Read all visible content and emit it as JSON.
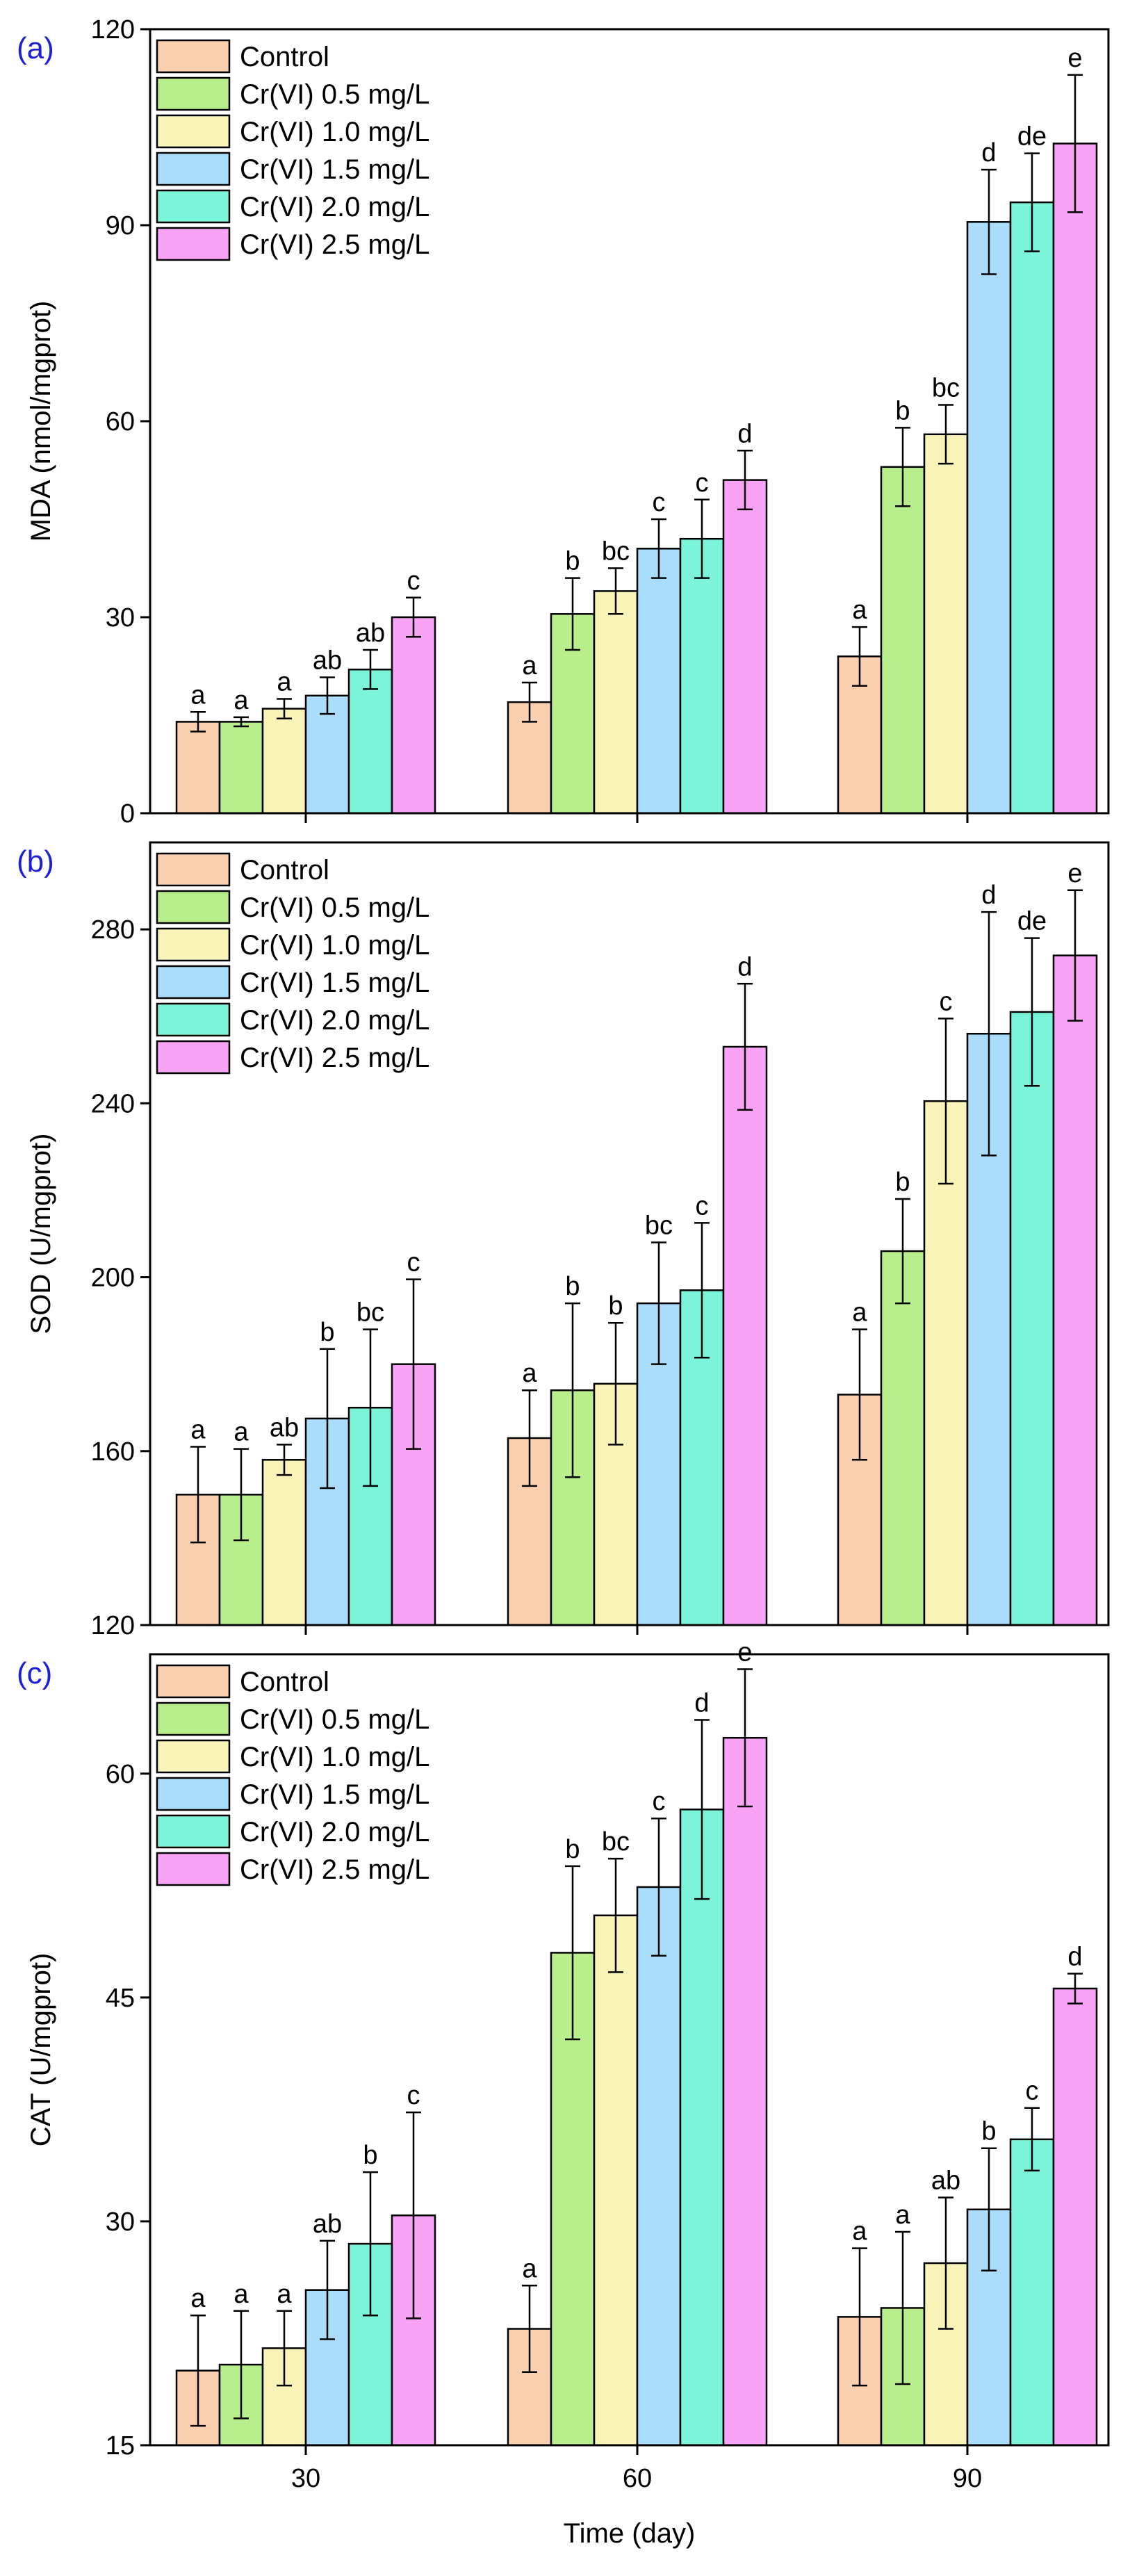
{
  "chart_data": [
    {
      "type": "bar",
      "panel_label": "(a)",
      "ylabel": "MDA (nmol/mgprot)",
      "xlabel": "",
      "ylim": [
        0,
        120
      ],
      "yticks": [
        0,
        30,
        60,
        90,
        120
      ],
      "categories": [
        "30",
        "60",
        "90"
      ],
      "legend_position": "top-left",
      "series": [
        {
          "name": "Control",
          "values": [
            14,
            17,
            24
          ],
          "errors": [
            1.5,
            3,
            4.5
          ],
          "labels": [
            "a",
            "a",
            "a"
          ]
        },
        {
          "name": "Cr(VI) 0.5 mg/L",
          "values": [
            14,
            30.5,
            53
          ],
          "errors": [
            0.7,
            5.5,
            6
          ],
          "labels": [
            "a",
            "b",
            "b"
          ]
        },
        {
          "name": "Cr(VI) 1.0 mg/L",
          "values": [
            16,
            34,
            58
          ],
          "errors": [
            1.5,
            3.5,
            4.5
          ],
          "labels": [
            "a",
            "bc",
            "bc"
          ]
        },
        {
          "name": "Cr(VI) 1.5 mg/L",
          "values": [
            18,
            40.5,
            90.5
          ],
          "errors": [
            2.8,
            4.5,
            8
          ],
          "labels": [
            "ab",
            "c",
            "d"
          ]
        },
        {
          "name": "Cr(VI) 2.0 mg/L",
          "values": [
            22,
            42,
            93.5
          ],
          "errors": [
            3,
            6,
            7.5
          ],
          "labels": [
            "ab",
            "c",
            "de"
          ]
        },
        {
          "name": "Cr(VI) 2.5 mg/L",
          "values": [
            30,
            51,
            102.5
          ],
          "errors": [
            3,
            4.5,
            10.5
          ],
          "labels": [
            "c",
            "d",
            "e"
          ]
        }
      ]
    },
    {
      "type": "bar",
      "panel_label": "(b)",
      "ylabel": "SOD (U/mgprot)",
      "xlabel": "",
      "ylim": [
        120,
        300
      ],
      "yticks": [
        120,
        160,
        200,
        240,
        280
      ],
      "categories": [
        "30",
        "60",
        "90"
      ],
      "legend_position": "top-left",
      "series": [
        {
          "name": "Control",
          "values": [
            150,
            163,
            173
          ],
          "errors": [
            11,
            11,
            15
          ],
          "labels": [
            "a",
            "a",
            "a"
          ]
        },
        {
          "name": "Cr(VI) 0.5 mg/L",
          "values": [
            150,
            174,
            206
          ],
          "errors": [
            10.5,
            20,
            12
          ],
          "labels": [
            "a",
            "b",
            "b"
          ]
        },
        {
          "name": "Cr(VI) 1.0 mg/L",
          "values": [
            158,
            175.5,
            240.5
          ],
          "errors": [
            3.5,
            14,
            19
          ],
          "labels": [
            "ab",
            "b",
            "c"
          ]
        },
        {
          "name": "Cr(VI) 1.5 mg/L",
          "values": [
            167.5,
            194,
            256
          ],
          "errors": [
            16,
            14,
            28
          ],
          "labels": [
            "b",
            "bc",
            "d"
          ]
        },
        {
          "name": "Cr(VI) 2.0 mg/L",
          "values": [
            170,
            197,
            261
          ],
          "errors": [
            18,
            15.5,
            17
          ],
          "labels": [
            "bc",
            "c",
            "de"
          ]
        },
        {
          "name": "Cr(VI) 2.5 mg/L",
          "values": [
            180,
            253,
            274
          ],
          "errors": [
            19.5,
            14.5,
            15
          ],
          "labels": [
            "c",
            "d",
            "e"
          ]
        }
      ]
    },
    {
      "type": "bar",
      "panel_label": "(c)",
      "ylabel": "CAT (U/mgprot)",
      "xlabel": "Time (day)",
      "ylim": [
        15,
        68
      ],
      "yticks": [
        15,
        30,
        45,
        60
      ],
      "categories": [
        "30",
        "60",
        "90"
      ],
      "legend_position": "top-left",
      "series": [
        {
          "name": "Control",
          "values": [
            20,
            22.8,
            23.6
          ],
          "errors": [
            3.7,
            2.9,
            4.6
          ],
          "labels": [
            "a",
            "a",
            "a"
          ]
        },
        {
          "name": "Cr(VI) 0.5 mg/L",
          "values": [
            20.4,
            48,
            24.2
          ],
          "errors": [
            3.6,
            5.8,
            5.1
          ],
          "labels": [
            "a",
            "b",
            "a"
          ]
        },
        {
          "name": "Cr(VI) 1.0 mg/L",
          "values": [
            21.5,
            50.5,
            27.2
          ],
          "errors": [
            2.5,
            3.8,
            4.4
          ],
          "labels": [
            "a",
            "bc",
            "ab"
          ]
        },
        {
          "name": "Cr(VI) 1.5 mg/L",
          "values": [
            25.4,
            52.4,
            30.8
          ],
          "errors": [
            3.3,
            4.6,
            4.1
          ],
          "labels": [
            "ab",
            "c",
            "b"
          ]
        },
        {
          "name": "Cr(VI) 2.0 mg/L",
          "values": [
            28.5,
            57.6,
            35.5
          ],
          "errors": [
            4.8,
            6,
            2.1
          ],
          "labels": [
            "b",
            "d",
            "c"
          ]
        },
        {
          "name": "Cr(VI) 2.5 mg/L",
          "values": [
            30.4,
            62.4,
            45.6
          ],
          "errors": [
            6.9,
            4.6,
            1
          ],
          "labels": [
            "c",
            "e",
            "d"
          ]
        }
      ]
    }
  ],
  "colors": [
    "#fbd0b0",
    "#b8ee8c",
    "#f9f3b8",
    "#aaddfb",
    "#7bf4da",
    "#f9a3f6"
  ]
}
